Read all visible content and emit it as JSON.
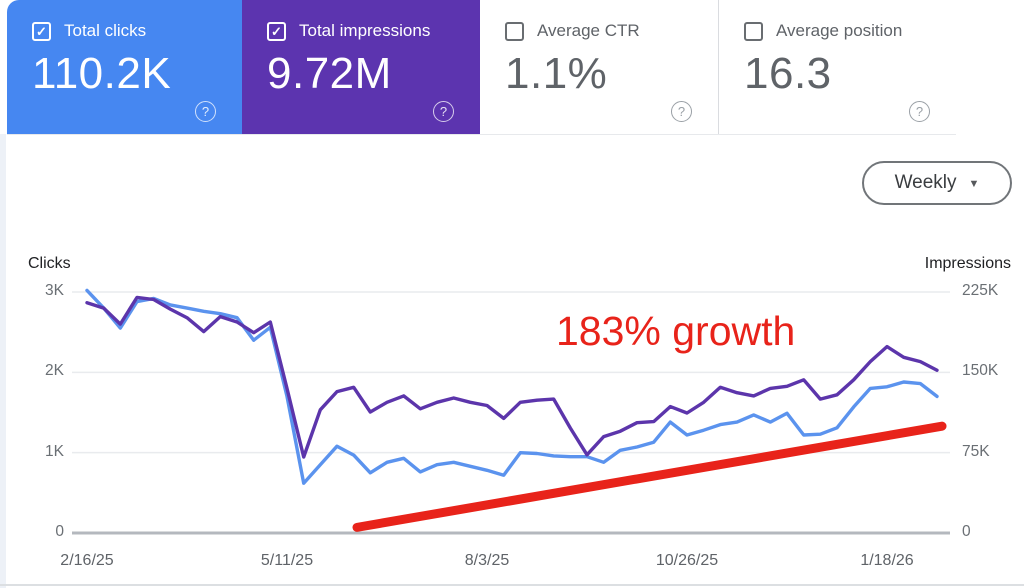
{
  "cards": [
    {
      "label": "Total clicks",
      "value": "110.2K",
      "checked": true,
      "bg": "#4687f1"
    },
    {
      "label": "Total impressions",
      "value": "9.72M",
      "checked": true,
      "bg": "#5c34af"
    },
    {
      "label": "Average CTR",
      "value": "1.1%",
      "checked": false,
      "bg": "#ffffff"
    },
    {
      "label": "Average position",
      "value": "16.3",
      "checked": false,
      "bg": "#ffffff"
    }
  ],
  "icons": {
    "check": "✓",
    "help": "?",
    "caret": "▼"
  },
  "toolbar": {
    "interval_label": "Weekly"
  },
  "chart_data": {
    "type": "line",
    "granularity": "weekly",
    "x_tick_labels": [
      "2/16/25",
      "5/11/25",
      "8/3/25",
      "10/26/25",
      "1/18/26"
    ],
    "x_tick_weeks": [
      0,
      12,
      24,
      36,
      48
    ],
    "left_axis": {
      "label": "Clicks",
      "tick_labels": [
        "3K",
        "2K",
        "1K",
        "0"
      ],
      "max": 3000
    },
    "right_axis": {
      "label": "Impressions",
      "tick_labels": [
        "225K",
        "150K",
        "75K",
        "0"
      ],
      "max": 225000
    },
    "series": [
      {
        "name": "Clicks",
        "axis": "left",
        "color": "#5b93ee",
        "values": [
          3020,
          2800,
          2550,
          2880,
          2920,
          2840,
          2800,
          2760,
          2730,
          2680,
          2400,
          2560,
          1700,
          620,
          850,
          1080,
          970,
          750,
          880,
          930,
          760,
          850,
          880,
          830,
          780,
          720,
          1000,
          990,
          960,
          950,
          950,
          880,
          1030,
          1070,
          1130,
          1380,
          1220,
          1280,
          1350,
          1380,
          1470,
          1380,
          1490,
          1220,
          1230,
          1310,
          1570,
          1800,
          1820,
          1880,
          1860,
          1700
        ]
      },
      {
        "name": "Impressions",
        "axis": "right",
        "color": "#5c35ab",
        "values": [
          215000,
          210000,
          195000,
          220000,
          218000,
          209000,
          201000,
          188000,
          202000,
          197000,
          187000,
          197000,
          135000,
          71000,
          115000,
          132000,
          136000,
          113000,
          122000,
          128000,
          116000,
          122000,
          126000,
          122000,
          119000,
          107000,
          122000,
          124000,
          125000,
          98000,
          73000,
          90000,
          95000,
          103000,
          104000,
          118000,
          112000,
          122000,
          136000,
          131000,
          128000,
          135000,
          137000,
          143000,
          125000,
          129000,
          143000,
          160000,
          174000,
          164000,
          160000,
          152000
        ]
      }
    ],
    "annotation": {
      "text": "183% growth",
      "color": "#e8231a"
    },
    "trendline": {
      "color": "#e8231a",
      "start_week": 16.2,
      "start_value_clicks": 70,
      "end_week": 51.3,
      "end_value_clicks": 1330
    }
  }
}
